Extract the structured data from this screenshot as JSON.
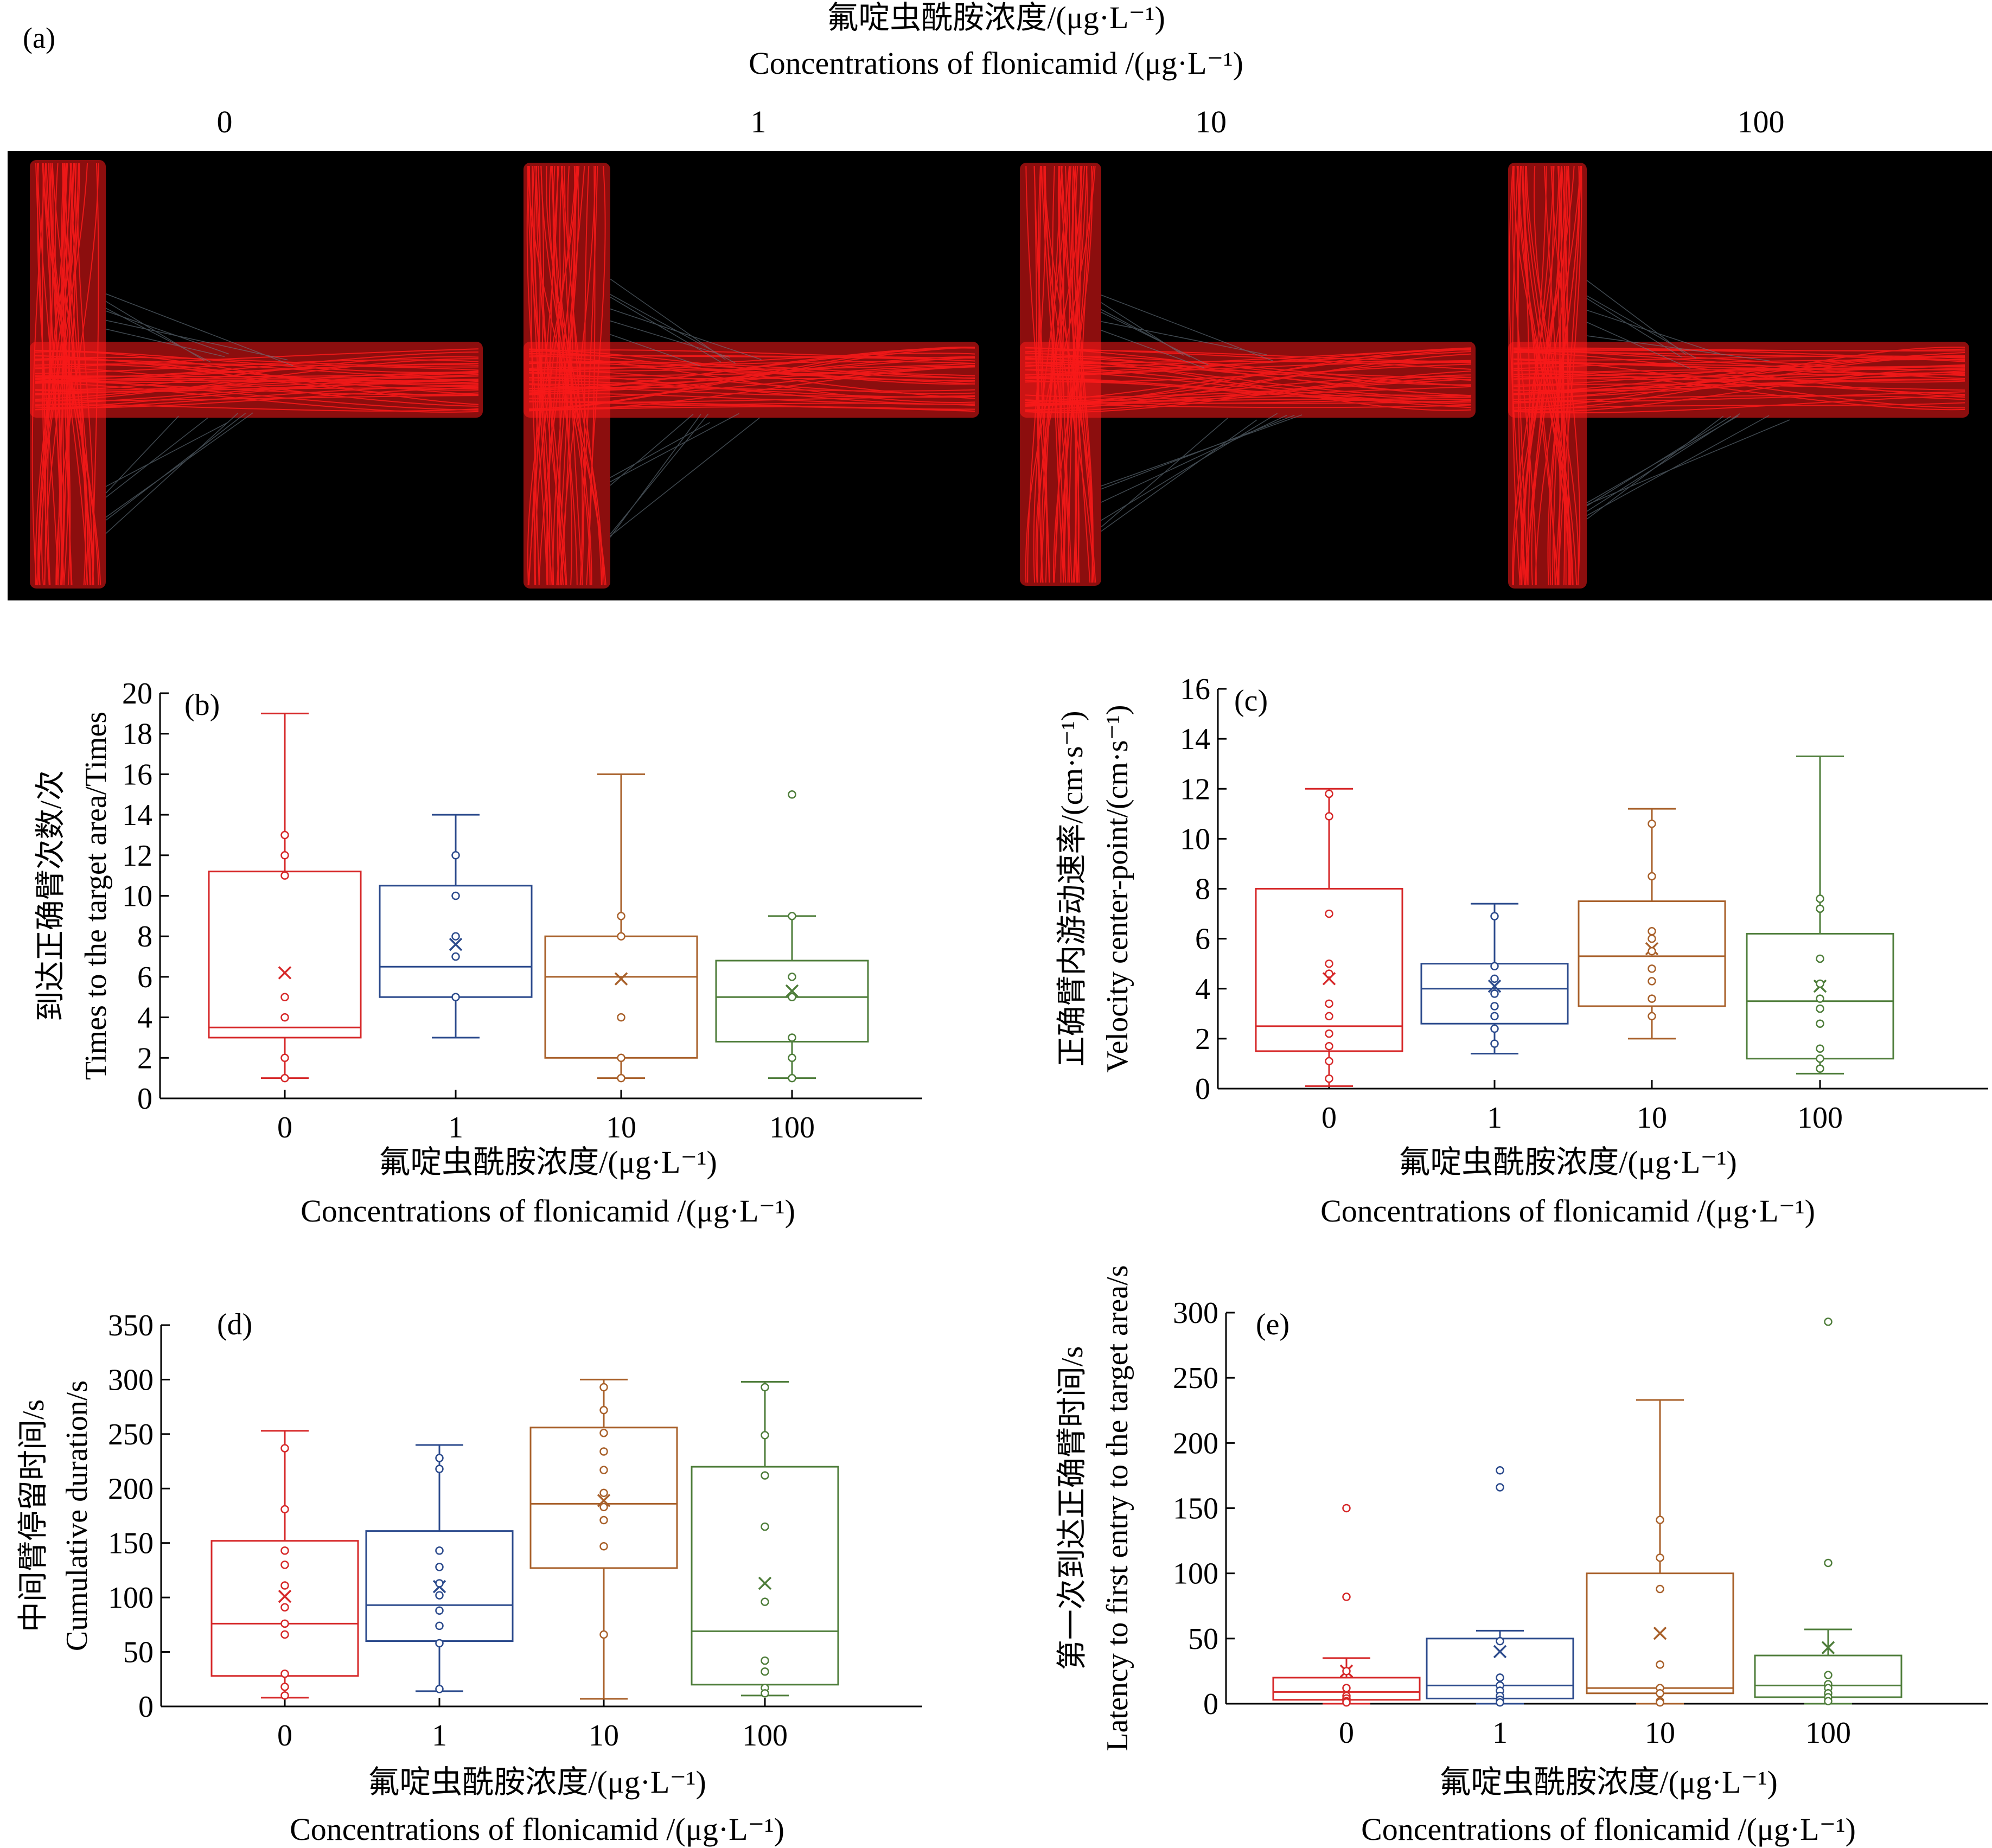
{
  "colors": {
    "c0": "#d62728",
    "c1": "#2b4a8c",
    "c10": "#a8602a",
    "c100": "#4e7d3a",
    "track": "#ff1a1a",
    "arena_bg": "#000000"
  },
  "panel_a": {
    "label": "(a)",
    "title_cn": "氟啶虫酰胺浓度/(μg·L⁻¹)",
    "title_en": "Concentrations of flonicamid /(μg·L⁻¹)",
    "columns": [
      "0",
      "1",
      "10",
      "100"
    ]
  },
  "x_title_cn": "氟啶虫酰胺浓度/(μg·L⁻¹)",
  "x_title_en": "Concentrations of flonicamid /(μg·L⁻¹)",
  "chart_data": [
    {
      "id": "b",
      "label": "(b)",
      "type": "box",
      "ylabel_cn": "到达正确臂次数/次",
      "ylabel_en": "Times to the target area/Times",
      "categories": [
        "0",
        "1",
        "10",
        "100"
      ],
      "ylim": [
        0,
        20
      ],
      "yticks": [
        0,
        2,
        4,
        6,
        8,
        10,
        12,
        14,
        16,
        18,
        20
      ],
      "boxes": [
        {
          "min": 1,
          "q1": 3,
          "median": 3.5,
          "q3": 11.2,
          "max": 19,
          "mean": 6.2,
          "points": [
            13,
            12,
            11,
            5,
            4,
            2,
            1
          ]
        },
        {
          "min": 3,
          "q1": 5,
          "median": 6.5,
          "q3": 10.5,
          "max": 14,
          "mean": 7.6,
          "points": [
            12,
            10,
            8,
            7,
            5
          ]
        },
        {
          "min": 1,
          "q1": 2,
          "median": 6,
          "q3": 8,
          "max": 16,
          "mean": 5.9,
          "points": [
            9,
            8,
            4,
            2,
            1
          ]
        },
        {
          "min": 1,
          "q1": 2.8,
          "median": 5,
          "q3": 6.8,
          "max": 9,
          "mean": 5.3,
          "points": [
            15,
            9,
            6,
            5,
            3,
            2,
            1
          ]
        }
      ]
    },
    {
      "id": "c",
      "label": "(c)",
      "type": "box",
      "ylabel_cn": "正确臂内游动速率/(cm·s⁻¹)",
      "ylabel_en": "Velocity center-point/(cm·s⁻¹)",
      "categories": [
        "0",
        "1",
        "10",
        "100"
      ],
      "ylim": [
        0,
        16
      ],
      "yticks": [
        0,
        2,
        4,
        6,
        8,
        10,
        12,
        14,
        16
      ],
      "boxes": [
        {
          "min": 0.1,
          "q1": 1.5,
          "median": 2.5,
          "q3": 8,
          "max": 12,
          "mean": 4.4,
          "points": [
            11.8,
            10.9,
            7,
            5,
            4.6,
            3.4,
            2.9,
            2.2,
            1.7,
            1.1,
            0.4
          ]
        },
        {
          "min": 1.4,
          "q1": 2.6,
          "median": 4,
          "q3": 5,
          "max": 7.4,
          "mean": 4.1,
          "points": [
            6.9,
            4.9,
            4.4,
            3.8,
            3.3,
            2.9,
            2.4,
            1.8
          ]
        },
        {
          "min": 2,
          "q1": 3.3,
          "median": 5.3,
          "q3": 7.5,
          "max": 11.2,
          "mean": 5.6,
          "points": [
            10.6,
            8.5,
            6.3,
            6,
            5.5,
            4.8,
            4.3,
            3.6,
            2.9
          ]
        },
        {
          "min": 0.6,
          "q1": 1.2,
          "median": 3.5,
          "q3": 6.2,
          "max": 13.3,
          "mean": 4.1,
          "points": [
            7.6,
            7.2,
            5.2,
            4.2,
            3.6,
            3.2,
            2.6,
            1.6,
            1.2,
            0.8
          ]
        }
      ]
    },
    {
      "id": "d",
      "label": "(d)",
      "type": "box",
      "ylabel_cn": "中间臂停留时间/s",
      "ylabel_en": "Cumulative duration/s",
      "categories": [
        "0",
        "1",
        "10",
        "100"
      ],
      "ylim": [
        0,
        350
      ],
      "yticks": [
        0,
        50,
        100,
        150,
        200,
        250,
        300,
        350
      ],
      "boxes": [
        {
          "min": 8,
          "q1": 28,
          "median": 76,
          "q3": 152,
          "max": 253,
          "mean": 101,
          "points": [
            237,
            181,
            143,
            130,
            111,
            91,
            76,
            66,
            30,
            18,
            10
          ]
        },
        {
          "min": 14,
          "q1": 60,
          "median": 93,
          "q3": 161,
          "max": 240,
          "mean": 110,
          "points": [
            228,
            218,
            143,
            128,
            113,
            102,
            88,
            74,
            58,
            16
          ]
        },
        {
          "min": 7,
          "q1": 127,
          "median": 186,
          "q3": 256,
          "max": 300,
          "mean": 189,
          "points": [
            293,
            272,
            251,
            234,
            217,
            196,
            183,
            171,
            147,
            66
          ]
        },
        {
          "min": 10,
          "q1": 20,
          "median": 69,
          "q3": 220,
          "max": 298,
          "mean": 113,
          "points": [
            293,
            249,
            212,
            165,
            96,
            42,
            32,
            17,
            12
          ]
        }
      ]
    },
    {
      "id": "e",
      "label": "(e)",
      "type": "box",
      "ylabel_cn": "第一次到达正确臂时间/s",
      "ylabel_en": "Latency to first entry to the target area/s",
      "categories": [
        "0",
        "1",
        "10",
        "100"
      ],
      "ylim": [
        0,
        300
      ],
      "yticks": [
        0,
        50,
        100,
        150,
        200,
        250,
        300
      ],
      "boxes": [
        {
          "min": 0,
          "q1": 3,
          "median": 9,
          "q3": 20,
          "max": 35,
          "mean": 25,
          "points": [
            150,
            82,
            25,
            12,
            6,
            4,
            2,
            1
          ]
        },
        {
          "min": 0,
          "q1": 4,
          "median": 14,
          "q3": 50,
          "max": 56,
          "mean": 40,
          "points": [
            179,
            166,
            48,
            20,
            14,
            10,
            6,
            3,
            1
          ]
        },
        {
          "min": 0,
          "q1": 8,
          "median": 12,
          "q3": 100,
          "max": 233,
          "mean": 54,
          "points": [
            141,
            112,
            88,
            30,
            12,
            8,
            2,
            1
          ]
        },
        {
          "min": 0,
          "q1": 5,
          "median": 14,
          "q3": 37,
          "max": 57,
          "mean": 43,
          "points": [
            293,
            108,
            22,
            15,
            12,
            8,
            5,
            2
          ]
        }
      ]
    }
  ]
}
